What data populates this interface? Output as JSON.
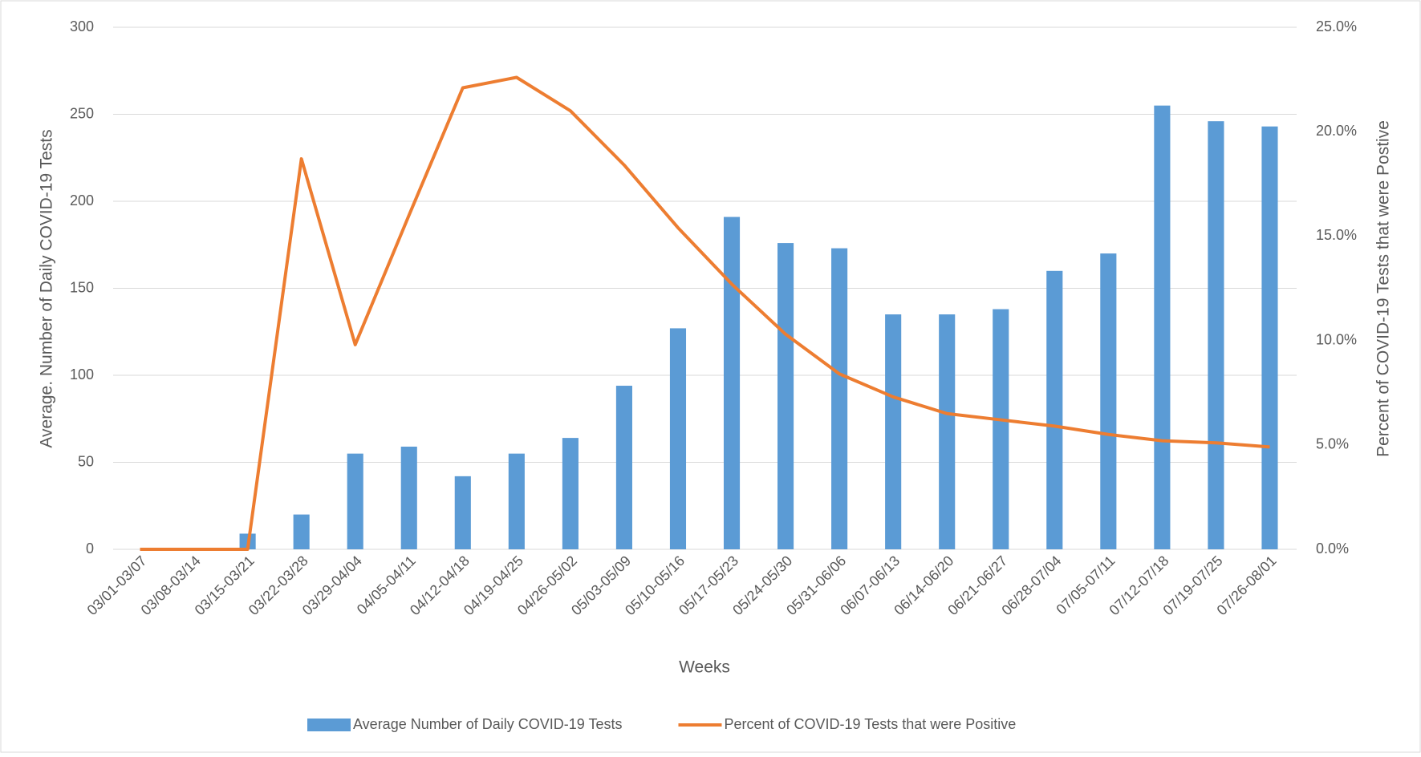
{
  "chart_data": {
    "type": "bar",
    "x_label": "Weeks",
    "y_label": "Average. Number of Daily COVID-19 Tests",
    "y2_label": "Percent of COVID-19 Tests that were Postive",
    "categories": [
      "03/01-03/07",
      "03/08-03/14",
      "03/15-03/21",
      "03/22-03/28",
      "03/29-04/04",
      "04/05-04/11",
      "04/12-04/18",
      "04/19-04/25",
      "04/26-05/02",
      "05/03-05/09",
      "05/10-05/16",
      "05/17-05/23",
      "05/24-05/30",
      "05/31-06/06",
      "06/07-06/13",
      "06/14-06/20",
      "06/21-06/27",
      "06/28-07/04",
      "07/05-07/11",
      "07/12-07/18",
      "07/19-07/25",
      "07/26-08/01"
    ],
    "series": [
      {
        "name": "Average Number of Daily COVID-19 Tests",
        "type": "bar",
        "color": "#5b9bd5",
        "values": [
          0,
          0,
          9,
          20,
          55,
          59,
          42,
          55,
          64,
          94,
          127,
          191,
          176,
          173,
          135,
          135,
          138,
          160,
          170,
          255,
          246,
          243
        ]
      },
      {
        "name": "Percent of COVID-19 Tests that were Positive",
        "type": "line",
        "axis": "y2",
        "color": "#ed7d31",
        "values": [
          0,
          0,
          0,
          18.7,
          9.8,
          16,
          22.1,
          22.6,
          21,
          18.4,
          15.4,
          12.7,
          10.3,
          8.4,
          7.3,
          6.5,
          6.2,
          5.9,
          5.5,
          5.2,
          5.1,
          4.9
        ]
      }
    ],
    "ylim": [
      0,
      300
    ],
    "yticks": [
      0,
      50,
      100,
      150,
      200,
      250,
      300
    ],
    "y2lim": [
      0,
      25
    ],
    "y2ticks": [
      {
        "value": 0,
        "label": "0.0%"
      },
      {
        "value": 5,
        "label": "5.0%"
      },
      {
        "value": 10,
        "label": "10.0%"
      },
      {
        "value": 15,
        "label": "15.0%"
      },
      {
        "value": 20,
        "label": "20.0%"
      },
      {
        "value": 25,
        "label": "25.0%"
      }
    ],
    "grid": true,
    "legend": "bottom"
  }
}
